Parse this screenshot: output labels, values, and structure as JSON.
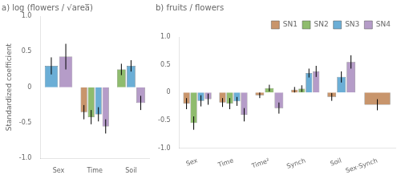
{
  "chart_data": [
    {
      "type": "bar",
      "title": "a) log (flowers / √area̅)",
      "ylabel": "Standardized coefficient",
      "categories": [
        "Sex",
        "Time",
        "Soil"
      ],
      "series": [
        {
          "name": "SN1",
          "color": "#c8956c",
          "values": [
            null,
            -0.35,
            null
          ],
          "errors": [
            null,
            0.1,
            null
          ]
        },
        {
          "name": "SN2",
          "color": "#8fbc6e",
          "values": [
            null,
            -0.42,
            0.25
          ],
          "errors": [
            null,
            0.1,
            0.08
          ]
        },
        {
          "name": "SN3",
          "color": "#6baed6",
          "values": [
            0.3,
            -0.38,
            0.3
          ],
          "errors": [
            0.12,
            0.1,
            0.08
          ]
        },
        {
          "name": "SN4",
          "color": "#b59cc8",
          "values": [
            0.43,
            -0.55,
            -0.22
          ],
          "errors": [
            0.18,
            0.1,
            0.1
          ]
        }
      ],
      "ylim": [
        -1.0,
        1.0
      ],
      "yticks": [
        {
          "value": -1.0,
          "label": "-1.0"
        },
        -0.5,
        0,
        0.5,
        {
          "value": 1.0,
          "label": "1.0"
        }
      ],
      "grid": false,
      "legend": false
    },
    {
      "type": "bar",
      "title": "b) fruits / flowers",
      "categories": [
        "Sex",
        "Time",
        "Time²",
        "Synch",
        "Soil",
        "Sex·Synch"
      ],
      "series": [
        {
          "name": "SN1",
          "color": "#c8956c",
          "values": [
            -0.2,
            -0.18,
            -0.05,
            0.05,
            -0.08,
            -0.22
          ],
          "errors": [
            0.1,
            0.08,
            0.05,
            0.05,
            0.07,
            0.1
          ]
        },
        {
          "name": "SN2",
          "color": "#8fbc6e",
          "values": [
            -0.55,
            -0.2,
            0.08,
            0.07,
            null,
            null
          ],
          "errors": [
            0.12,
            0.1,
            0.06,
            0.06,
            null,
            null
          ]
        },
        {
          "name": "SN3",
          "color": "#6baed6",
          "values": [
            -0.15,
            -0.16,
            null,
            0.35,
            0.28,
            null
          ],
          "errors": [
            0.1,
            0.08,
            null,
            0.08,
            0.1,
            null
          ]
        },
        {
          "name": "SN4",
          "color": "#b59cc8",
          "values": [
            -0.12,
            -0.4,
            -0.28,
            0.38,
            0.55,
            null
          ],
          "errors": [
            0.1,
            0.12,
            0.1,
            0.1,
            0.12,
            null
          ]
        }
      ],
      "ylim": [
        -1.0,
        1.0
      ],
      "yticks": [
        {
          "value": -1.0,
          "label": "-1.0"
        },
        -0.5,
        0,
        0.5,
        {
          "value": 1.0,
          "label": "1.0"
        }
      ],
      "grid": false,
      "legend": "upper right"
    }
  ]
}
